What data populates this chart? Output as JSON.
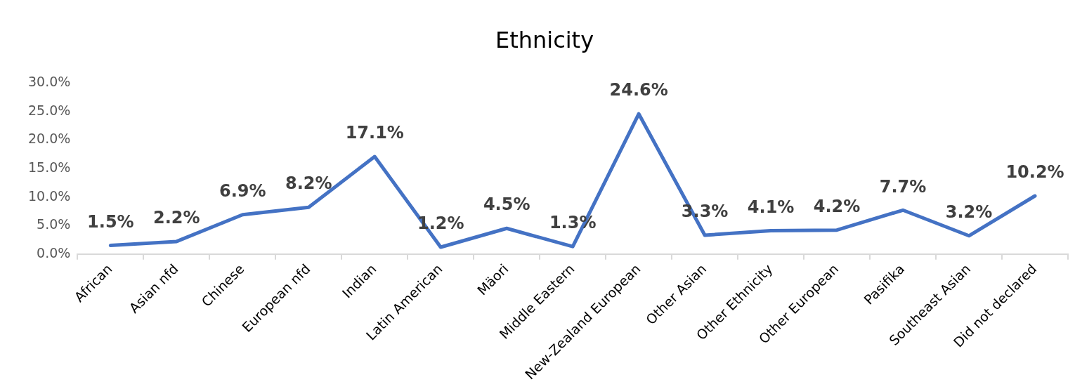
{
  "chart_data": {
    "type": "line",
    "title": "Ethnicity",
    "categories": [
      "African",
      "Asian nfd",
      "Chinese",
      "European nfd",
      "Indian",
      "Latin American",
      "Mäori",
      "Middle Eastern",
      "New-Zealand European",
      "Other Asian",
      "Other Ethnicity",
      "Other European",
      "Pasifika",
      "Southeast Asian",
      "Did not declared"
    ],
    "series": [
      {
        "color": "#4472c4",
        "values": [
          1.5,
          2.2,
          6.9,
          8.2,
          17.1,
          1.2,
          4.5,
          1.3,
          24.6,
          3.3,
          4.1,
          4.2,
          7.7,
          3.2,
          10.2
        ],
        "value_labels": [
          "1.5%",
          "2.2%",
          "6.9%",
          "8.2%",
          "17.1%",
          "1.2%",
          "4.5%",
          "1.3%",
          "24.6%",
          "3.3%",
          "4.1%",
          "4.2%",
          "7.7%",
          "3.2%",
          "10.2%"
        ]
      }
    ],
    "ylim": [
      0,
      30
    ],
    "yticks": [
      {
        "value": 0,
        "label": "0.0%"
      },
      {
        "value": 5,
        "label": "5.0%"
      },
      {
        "value": 10,
        "label": "10.0%"
      },
      {
        "value": 15,
        "label": "15.0%"
      },
      {
        "value": 20,
        "label": "20.0%"
      },
      {
        "value": 25,
        "label": "25.0%"
      },
      {
        "value": 30,
        "label": "30.0%"
      }
    ],
    "grid": false,
    "legend": false,
    "marker": "none",
    "line_style": "solid"
  }
}
